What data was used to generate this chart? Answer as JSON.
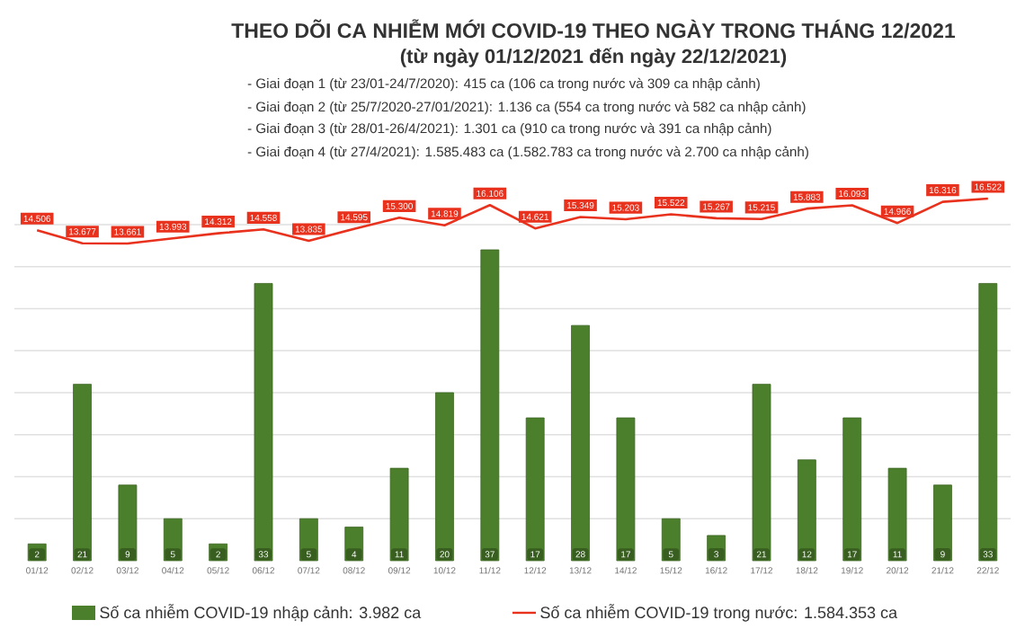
{
  "chart_data": {
    "type": "bar",
    "title": "THEO DÕI CA NHIỄM MỚI COVID-19 THEO NGÀY TRONG THÁNG 12/2021",
    "subtitle": "(từ ngày 01/12/2021 đến ngày 22/12/2021)",
    "annotations": [
      "- Giai đoạn 1 (từ 23/01-24/7/2020): 415 ca (106 ca trong nước và 309 ca nhập cảnh)",
      "- Giai đoạn 2 (từ 25/7/2020-27/01/2021): 1.136 ca (554 ca trong nước và 582 ca nhập cảnh)",
      "- Giai đoạn 3 (từ 28/01-26/4/2021): 1.301 ca (910 ca trong nước và 391 ca nhập cảnh)",
      "- Giai đoạn 4 (từ 27/4/2021): 1.585.483 ca (1.582.783 ca trong nước và 2.700 ca nhập cảnh)"
    ],
    "categories": [
      "01/12",
      "02/12",
      "03/12",
      "04/12",
      "05/12",
      "06/12",
      "07/12",
      "08/12",
      "09/12",
      "10/12",
      "11/12",
      "12/12",
      "13/12",
      "14/12",
      "15/12",
      "16/12",
      "17/12",
      "18/12",
      "19/12",
      "20/12",
      "21/12",
      "22/12"
    ],
    "series": [
      {
        "name": "Số ca nhiễm COVID-19 nhập cảnh: 3.982 ca",
        "color": "#4b7f2b",
        "values": [
          2,
          21,
          9,
          5,
          2,
          33,
          5,
          4,
          11,
          20,
          37,
          17,
          28,
          17,
          5,
          3,
          21,
          12,
          17,
          11,
          9,
          33
        ],
        "value_labels": [
          "2",
          "21",
          "9",
          "5",
          "2",
          "33",
          "5",
          "4",
          "11",
          "20",
          "37",
          "17",
          "28",
          "17",
          "5",
          "3",
          "21",
          "12",
          "17",
          "11",
          "9",
          "33"
        ]
      },
      {
        "name": "Số ca nhiễm COVID-19 trong nước: 1.584.353 ca",
        "type": "line",
        "axis": "y2",
        "color": "#e8321e",
        "values": [
          14506,
          13677,
          13661,
          13993,
          14312,
          14558,
          13835,
          14595,
          15300,
          14819,
          16106,
          14621,
          15349,
          15203,
          15522,
          15267,
          15215,
          15883,
          16093,
          14966,
          16316,
          16522
        ],
        "value_labels": [
          "14.506",
          "13.677",
          "13.661",
          "13.993",
          "14.312",
          "14.558",
          "13.835",
          "14.595",
          "15.300",
          "14.819",
          "16.106",
          "14.621",
          "15.349",
          "15.203",
          "15.522",
          "15.267",
          "15.215",
          "15.883",
          "16.093",
          "14.966",
          "16.316",
          "16.522"
        ]
      }
    ],
    "ylim": [
      0,
      40
    ],
    "yticks": [
      {
        "value": 5,
        "label": null
      },
      {
        "value": 10,
        "label": null
      },
      {
        "value": 15,
        "label": null
      },
      {
        "value": 20,
        "label": null
      },
      {
        "value": 25,
        "label": null
      },
      {
        "value": 30,
        "label": null
      },
      {
        "value": 35,
        "label": null
      },
      {
        "value": 40,
        "label": null
      }
    ],
    "grid": "y",
    "legend": "bottom",
    "tick_labels": "x"
  }
}
